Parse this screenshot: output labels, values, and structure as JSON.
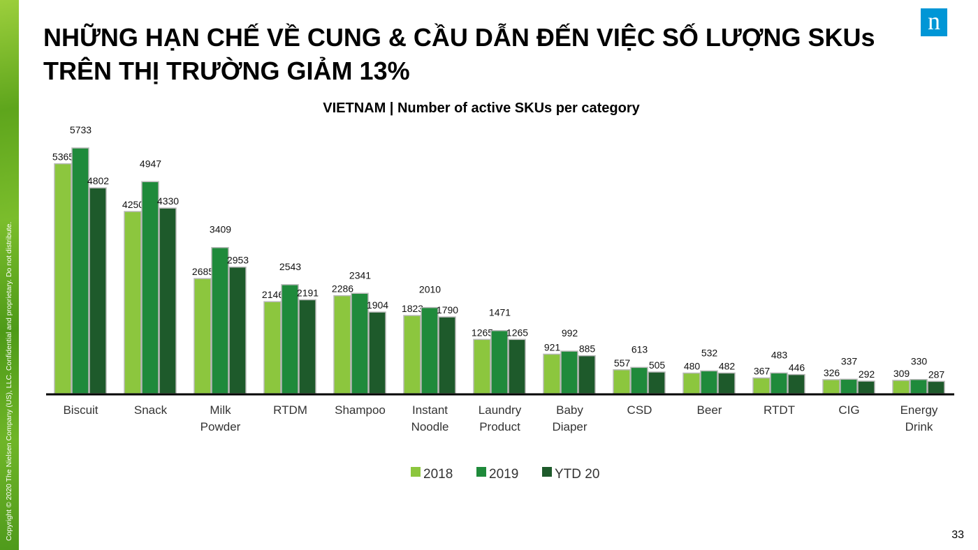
{
  "slide": {
    "title": "NHỮNG HẠN CHẾ VỀ CUNG & CẦU DẪN ĐẾN VIỆC SỐ LƯỢNG SKUs TRÊN THỊ TRƯỜNG GIẢM 13%",
    "logo": "n",
    "copyright": "Copyright © 2020 The Nielsen Company (US), LLC. Confidential and proprietary. Do not distribute.",
    "page_number": "33"
  },
  "chart_data": {
    "type": "bar",
    "title": "VIETNAM | Number of active SKUs per category",
    "categories": [
      [
        "Biscuit"
      ],
      [
        "Snack"
      ],
      [
        "Milk",
        "Powder"
      ],
      [
        "RTDM"
      ],
      [
        "Shampoo"
      ],
      [
        "Instant",
        "Noodle"
      ],
      [
        "Laundry",
        "Product"
      ],
      [
        "Baby",
        "Diaper"
      ],
      [
        "CSD"
      ],
      [
        "Beer"
      ],
      [
        "RTDT"
      ],
      [
        "CIG"
      ],
      [
        "Energy",
        "Drink"
      ]
    ],
    "series": [
      {
        "name": "2018",
        "color": "#8cc63e",
        "values": [
          5365,
          4250,
          2685,
          2146,
          2286,
          1823,
          1265,
          921,
          557,
          480,
          367,
          326,
          309
        ]
      },
      {
        "name": "2019",
        "color": "#1f8a3b",
        "values": [
          5733,
          4947,
          3409,
          2543,
          2341,
          2010,
          1471,
          992,
          613,
          532,
          483,
          337,
          330
        ]
      },
      {
        "name": "YTD 20",
        "color": "#1e5a2b",
        "values": [
          4802,
          4330,
          2953,
          2191,
          1904,
          1790,
          1265,
          885,
          505,
          482,
          446,
          292,
          287
        ]
      }
    ],
    "ylim": [
      0,
      5733
    ],
    "legend": "bottom",
    "grid": false
  }
}
